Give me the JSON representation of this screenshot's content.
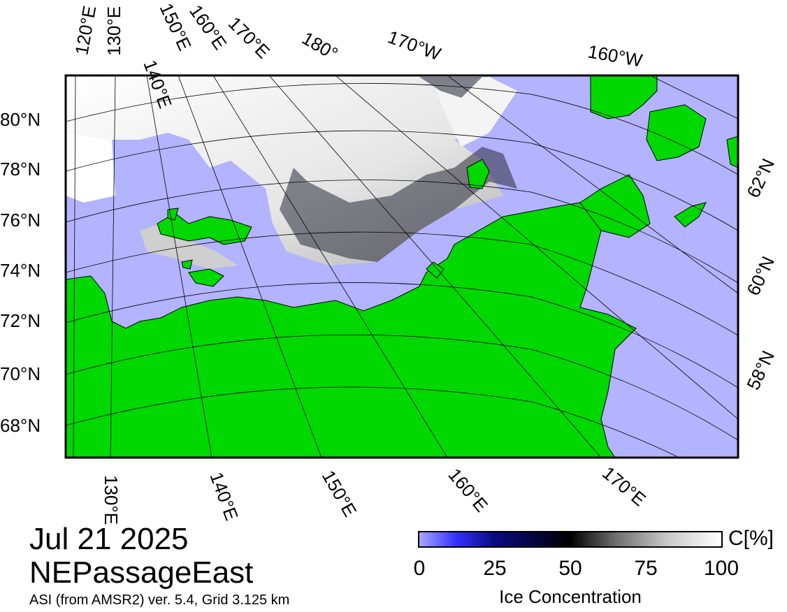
{
  "header": {
    "date": "Jul 21 2025",
    "region": "NEPassageEast",
    "product": "ASI (from AMSR2) ver. 5.4,  Grid 3.125 km"
  },
  "map": {
    "colors": {
      "ocean": "#b3b3ff",
      "land": "#00d800",
      "ice_white": "#ffffff",
      "frame": "#000000"
    },
    "top_lon_labels": [
      "120°E",
      "130°E",
      "140°E",
      "150°E",
      "160°E",
      "170°E",
      "180°",
      "170°W",
      "160°W"
    ],
    "left_lat_labels": [
      "80°N",
      "78°N",
      "76°N",
      "74°N",
      "72°N",
      "70°N",
      "68°N"
    ],
    "right_lat_labels": [
      "62°N",
      "60°N",
      "58°N"
    ],
    "bottom_lon_labels": [
      "130°E",
      "140°E",
      "150°E",
      "160°E",
      "170°E"
    ]
  },
  "colorbar": {
    "unit": "C[%]",
    "title": "Ice Concentration",
    "ticks": [
      "0",
      "25",
      "50",
      "75",
      "100"
    ]
  }
}
